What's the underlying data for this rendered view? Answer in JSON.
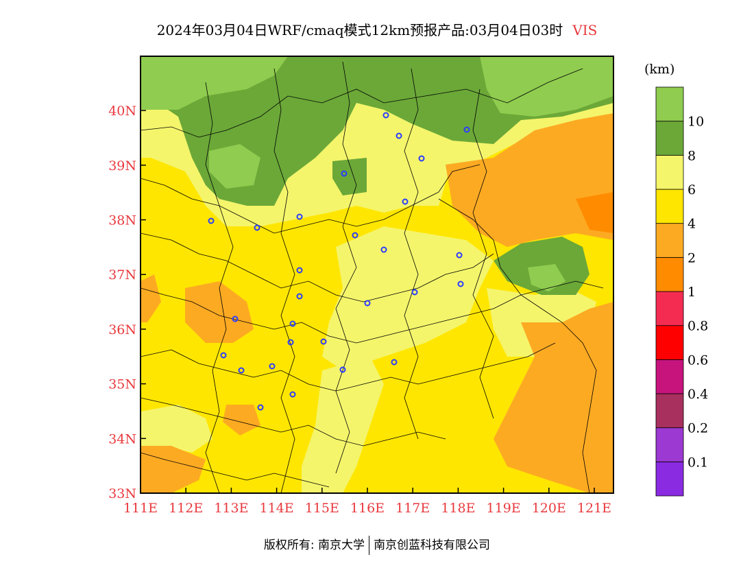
{
  "title": {
    "main": "2024年03月04日WRF/cmaq模式12km预报产品:03月04日03时",
    "variable": "VIS"
  },
  "map": {
    "lon_ticks": [
      "111E",
      "112E",
      "113E",
      "114E",
      "115E",
      "116E",
      "117E",
      "118E",
      "119E",
      "120E",
      "121E"
    ],
    "lat_ticks": [
      "33N",
      "34N",
      "35N",
      "36N",
      "37N",
      "38N",
      "39N",
      "40N"
    ],
    "station_marker": "blue-circle-icon"
  },
  "colorbar": {
    "units": "(km)",
    "colors": [
      "#8a2be2",
      "#9b39d2",
      "#a8305e",
      "#c7147d",
      "#ff0000",
      "#f52c52",
      "#ff8c00",
      "#fdaa23",
      "#ffe600",
      "#f4f56b",
      "#6ba838",
      "#8fcc4f"
    ],
    "labels": [
      "0.1",
      "0.2",
      "0.4",
      "0.6",
      "0.8",
      "1",
      "2",
      "4",
      "6",
      "8",
      "10"
    ]
  },
  "footer": {
    "left": "版权所有: 南京大学",
    "right": "南京创蓝科技有限公司"
  }
}
